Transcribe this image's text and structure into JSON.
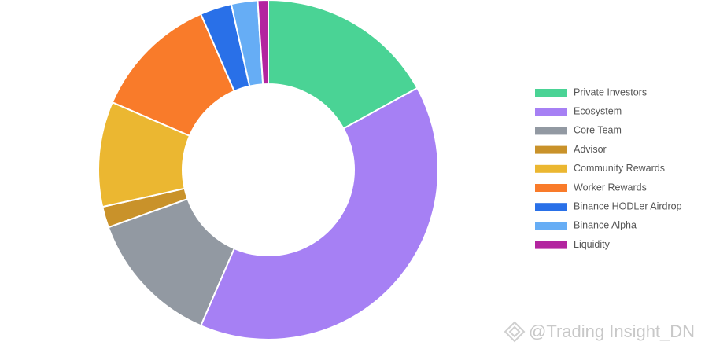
{
  "chart_data": {
    "type": "donut",
    "categories": [
      "Private Investors",
      "Ecosystem",
      "Core Team",
      "Advisor",
      "Community Rewards",
      "Worker Rewards",
      "Binance HODLer Airdrop",
      "Binance Alpha",
      "Liquidity"
    ],
    "values": [
      17,
      39.5,
      13,
      2,
      10,
      12,
      3,
      2.5,
      1
    ],
    "colors": [
      "#4ad395",
      "#a680f4",
      "#9299a2",
      "#c9922a",
      "#ebb731",
      "#f97b2a",
      "#2970e8",
      "#66adf5",
      "#b3249f"
    ],
    "legend": "right"
  },
  "watermark": "@Trading Insight_DN"
}
